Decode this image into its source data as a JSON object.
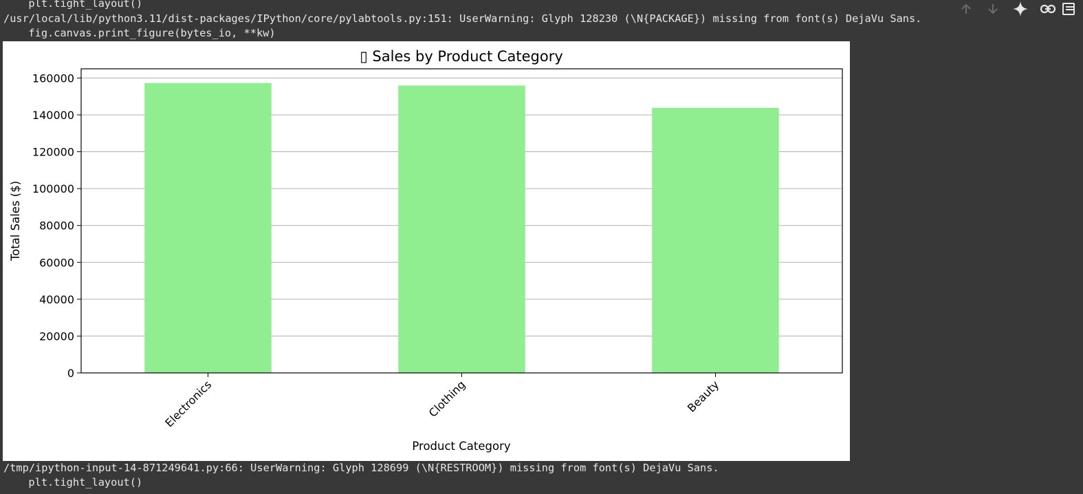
{
  "output": {
    "top_lines": [
      "  plt.tight_layout()",
      "/usr/local/lib/python3.11/dist-packages/IPython/core/pylabtools.py:151: UserWarning: Glyph 128230 (\\N{PACKAGE}) missing from font(s) DejaVu Sans.",
      "  fig.canvas.print_figure(bytes_io, **kw)"
    ],
    "bottom_lines": [
      "/tmp/ipython-input-14-871249641.py:66: UserWarning: Glyph 128699 (\\N{RESTROOM}) missing from font(s) DejaVu Sans.",
      "  plt.tight_layout()"
    ]
  },
  "toolbar": {
    "buttons": [
      {
        "name": "move-up-button",
        "icon": "arrow-up-icon"
      },
      {
        "name": "move-down-button",
        "icon": "arrow-down-icon"
      },
      {
        "name": "gemini-button",
        "icon": "sparkle-icon"
      },
      {
        "name": "link-button",
        "icon": "link-icon"
      },
      {
        "name": "comment-button",
        "icon": "comment-icon"
      }
    ]
  },
  "chart_data": {
    "type": "bar",
    "title": "▯ Sales by Product Category",
    "xlabel": "Product Category",
    "ylabel": "Total Sales ($)",
    "categories": [
      "Electronics",
      "Clothing",
      "Beauty"
    ],
    "values": [
      157300,
      155900,
      143800
    ],
    "ylim": [
      0,
      165000
    ],
    "yticks": [
      0,
      20000,
      40000,
      60000,
      80000,
      100000,
      120000,
      140000,
      160000
    ],
    "grid": "y",
    "bar_color": "#90ee90",
    "x_tick_rotation": 45
  }
}
